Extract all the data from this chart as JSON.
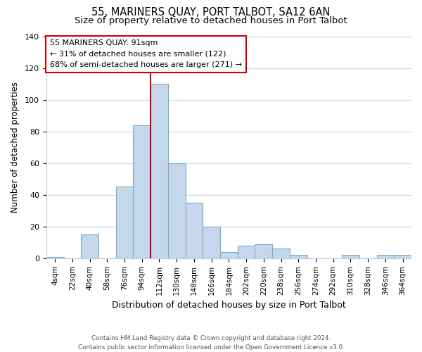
{
  "title": "55, MARINERS QUAY, PORT TALBOT, SA12 6AN",
  "subtitle": "Size of property relative to detached houses in Port Talbot",
  "xlabel": "Distribution of detached houses by size in Port Talbot",
  "ylabel": "Number of detached properties",
  "footer_line1": "Contains HM Land Registry data © Crown copyright and database right 2024.",
  "footer_line2": "Contains public sector information licensed under the Open Government Licence v3.0.",
  "bin_labels": [
    "4sqm",
    "22sqm",
    "40sqm",
    "58sqm",
    "76sqm",
    "94sqm",
    "112sqm",
    "130sqm",
    "148sqm",
    "166sqm",
    "184sqm",
    "202sqm",
    "220sqm",
    "238sqm",
    "256sqm",
    "274sqm",
    "292sqm",
    "310sqm",
    "328sqm",
    "346sqm",
    "364sqm"
  ],
  "bar_values": [
    1,
    0,
    15,
    0,
    45,
    84,
    110,
    60,
    35,
    20,
    4,
    8,
    9,
    6,
    2,
    0,
    0,
    2,
    0,
    2,
    2
  ],
  "bar_color": "#c5d8eb",
  "bar_edge_color": "#7aaac8",
  "vline_x": 5.5,
  "vline_color": "#cc0000",
  "annotation_title": "55 MARINERS QUAY: 91sqm",
  "annotation_line1": "← 31% of detached houses are smaller (122)",
  "annotation_line2": "68% of semi-detached houses are larger (271) →",
  "annotation_box_color": "#ffffff",
  "annotation_box_edge": "#cc0000",
  "ylim": [
    0,
    140
  ],
  "yticks": [
    0,
    20,
    40,
    60,
    80,
    100,
    120,
    140
  ],
  "bg_color": "#ffffff",
  "grid_color": "#c8d8e8",
  "title_fontsize": 10.5,
  "subtitle_fontsize": 9.5
}
